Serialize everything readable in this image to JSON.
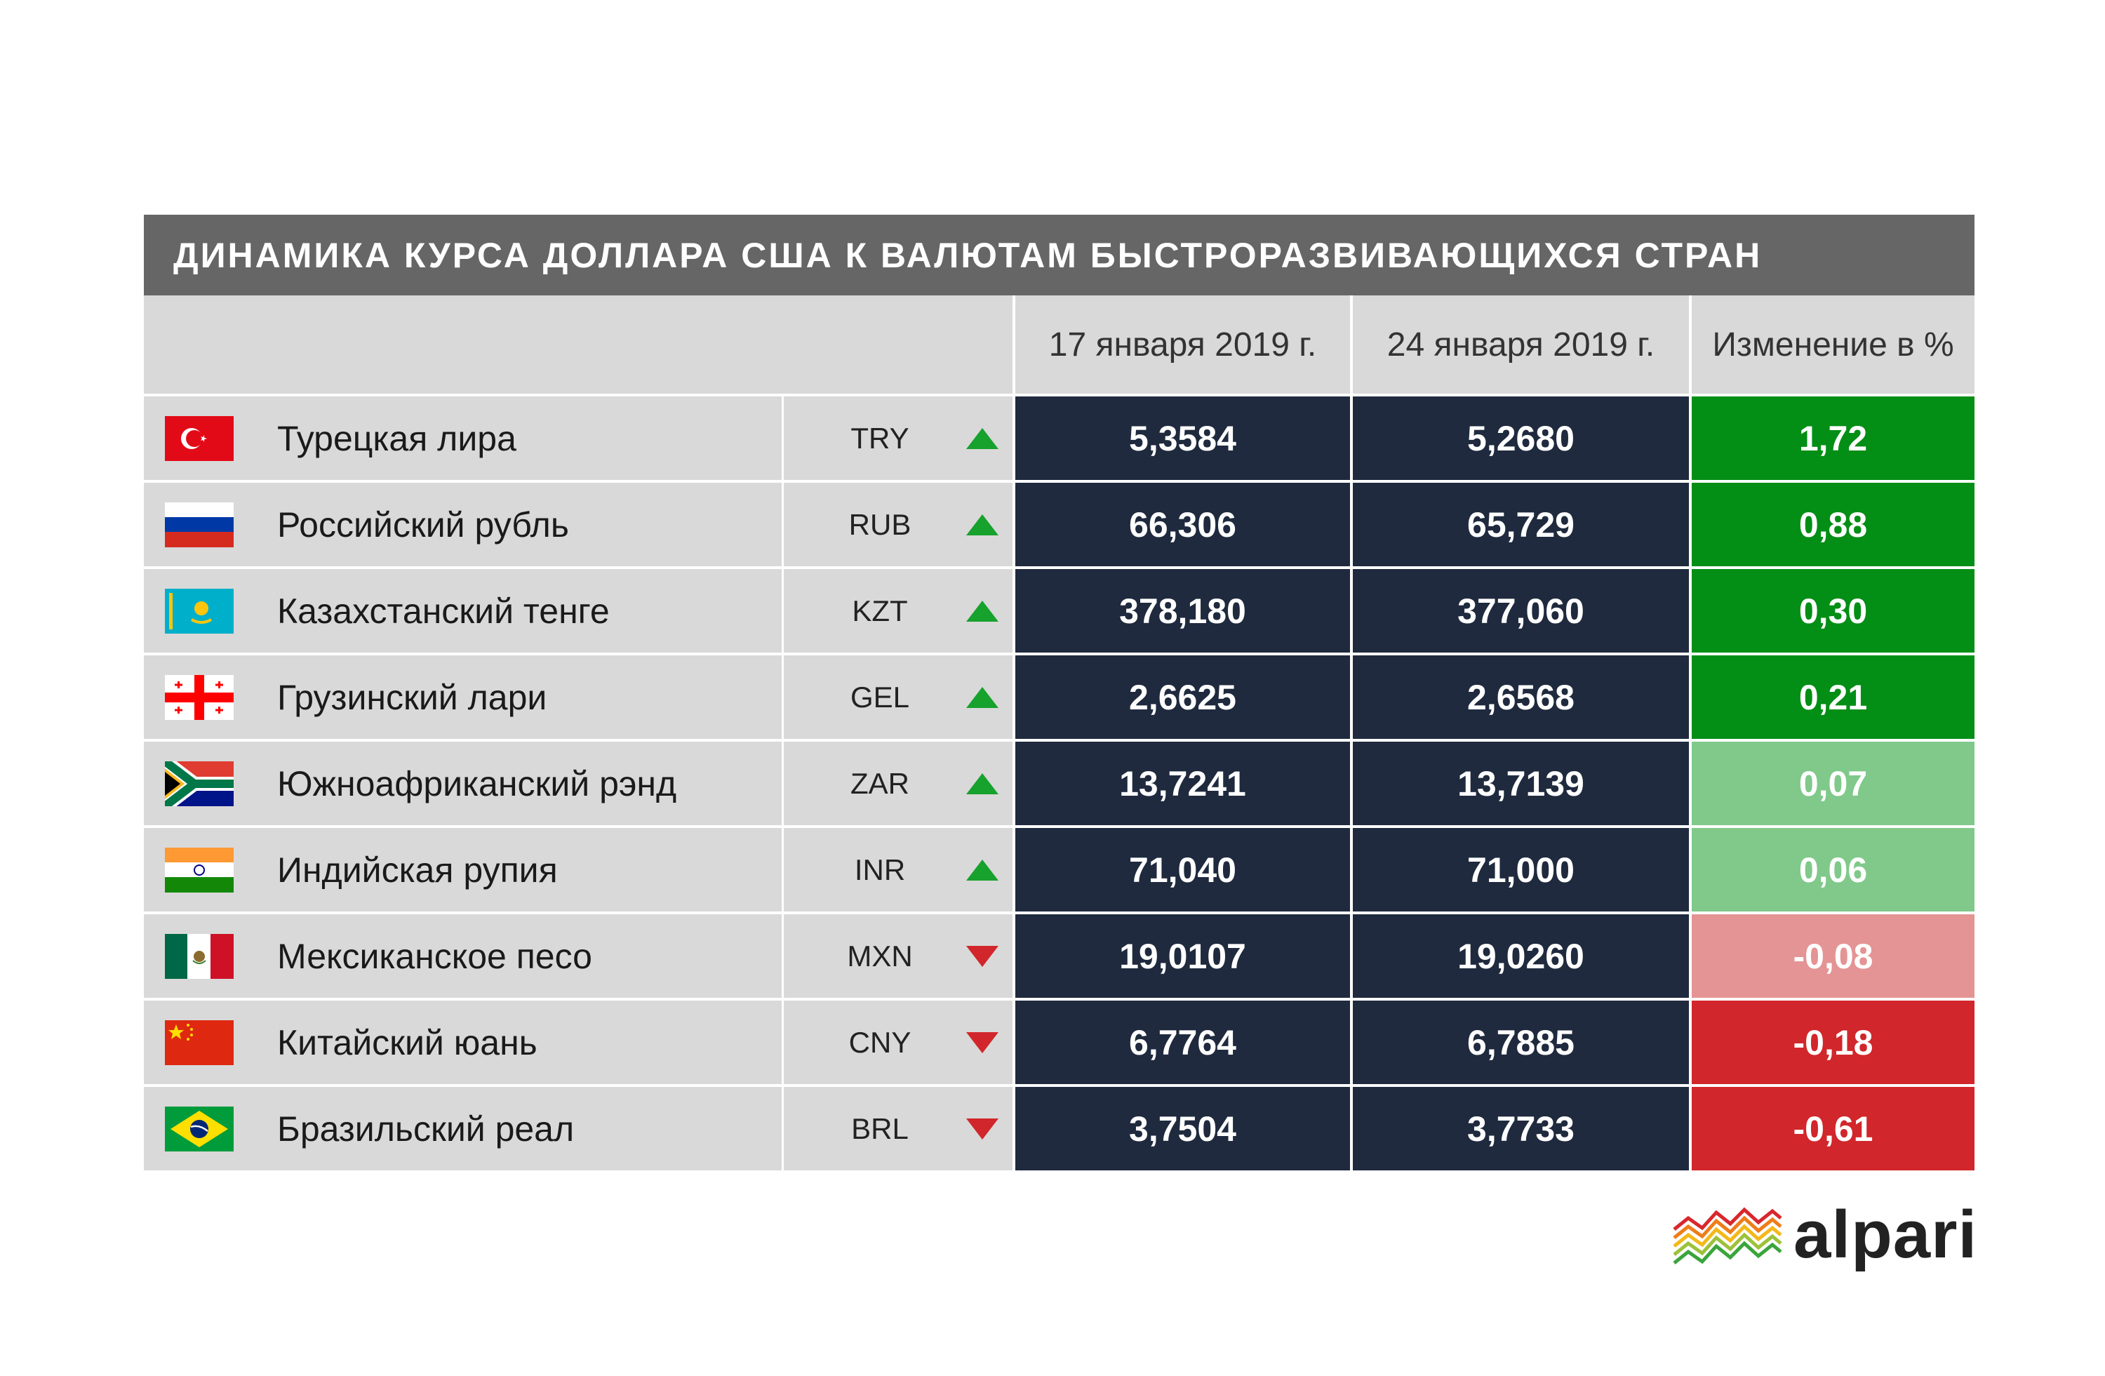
{
  "chart_data": {
    "type": "table",
    "title": "ДИНАМИКА КУРСА ДОЛЛАРА США К ВАЛЮТАМ БЫСТРОРАЗВИВАЮЩИХСЯ СТРАН",
    "columns": [
      "17 января 2019 г.",
      "24 января 2019 г.",
      "Изменение в %"
    ],
    "rows": [
      {
        "name": "Турецкая лира",
        "code": "TRY",
        "trend": "up",
        "v1": "5,3584",
        "v2": "5,2680",
        "change": "1,72",
        "change_color": "#038e15",
        "flag": "turkey"
      },
      {
        "name": "Российский рубль",
        "code": "RUB",
        "trend": "up",
        "v1": "66,306",
        "v2": "65,729",
        "change": "0,88",
        "change_color": "#038e15",
        "flag": "russia"
      },
      {
        "name": "Казахстанский тенге",
        "code": "KZT",
        "trend": "up",
        "v1": "378,180",
        "v2": "377,060",
        "change": "0,30",
        "change_color": "#038e15",
        "flag": "kazakhstan"
      },
      {
        "name": "Грузинский лари",
        "code": "GEL",
        "trend": "up",
        "v1": "2,6625",
        "v2": "2,6568",
        "change": "0,21",
        "change_color": "#038e15",
        "flag": "georgia"
      },
      {
        "name": "Южноафриканский рэнд",
        "code": "ZAR",
        "trend": "up",
        "v1": "13,7241",
        "v2": "13,7139",
        "change": "0,07",
        "change_color": "#80c98a",
        "flag": "south-africa"
      },
      {
        "name": "Индийская рупия",
        "code": "INR",
        "trend": "up",
        "v1": "71,040",
        "v2": "71,000",
        "change": "0,06",
        "change_color": "#80c98a",
        "flag": "india"
      },
      {
        "name": "Мексиканское песо",
        "code": "MXN",
        "trend": "down",
        "v1": "19,0107",
        "v2": "19,0260",
        "change": "-0,08",
        "change_color": "#e49495",
        "flag": "mexico"
      },
      {
        "name": "Китайский юань",
        "code": "CNY",
        "trend": "down",
        "v1": "6,7764",
        "v2": "6,7885",
        "change": "-0,18",
        "change_color": "#d1262b",
        "flag": "china"
      },
      {
        "name": "Бразильский реал",
        "code": "BRL",
        "trend": "down",
        "v1": "3,7504",
        "v2": "3,7733",
        "change": "-0,61",
        "change_color": "#d1262b",
        "flag": "brazil"
      }
    ]
  },
  "colors": {
    "title_bg": "#666666",
    "header_bg": "#d9d9d9",
    "value_bg": "#1f2a3e",
    "up_arrow": "#17a12d",
    "down_arrow": "#d1262b"
  },
  "logo": {
    "text": "alpari"
  }
}
